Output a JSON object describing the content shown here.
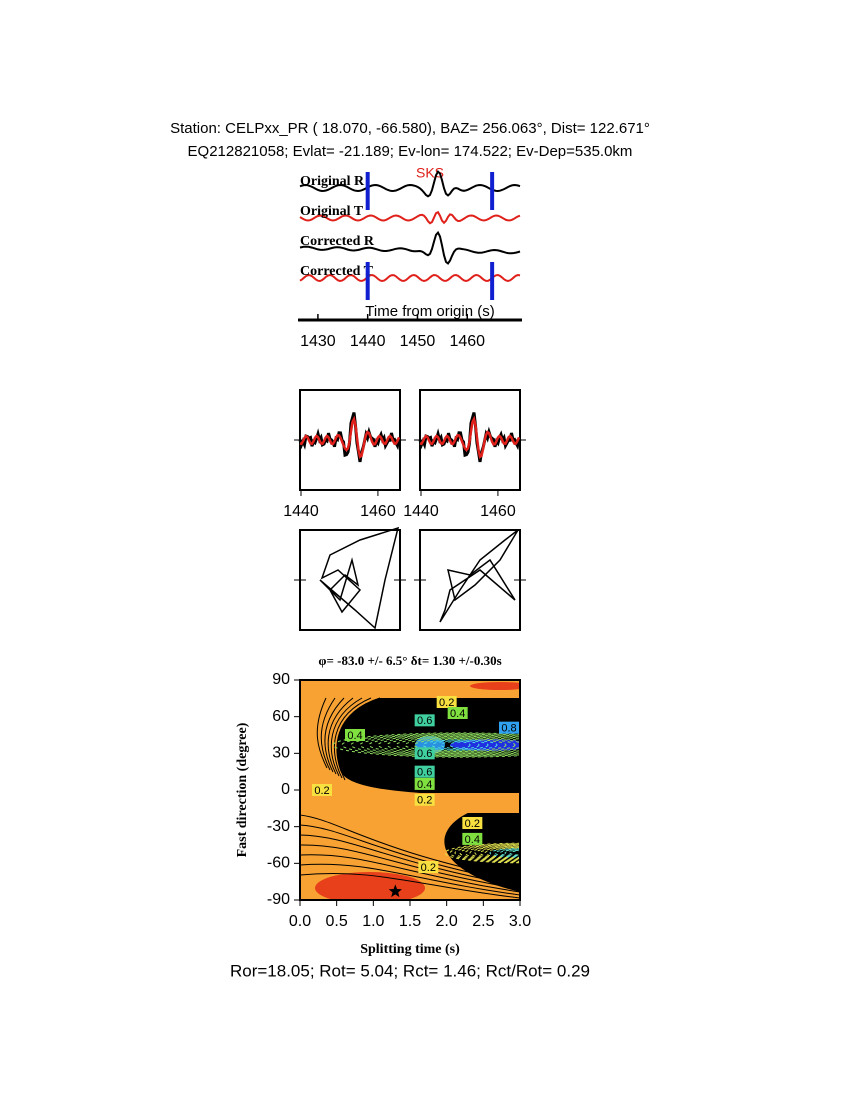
{
  "header": {
    "line1": "Station: CELPxx_PR (  18.070,  -66.580), BAZ=  256.063°, Dist=  122.671°",
    "line2": "EQ212821058; Evlat= -21.189; Ev-lon= 174.522; Ev-Dep=535.0km"
  },
  "traces": {
    "labels": [
      "Original R",
      "Original T",
      "Corrected R",
      "Corrected T"
    ],
    "colors": [
      "#000000",
      "#e0201a",
      "#000000",
      "#e0201a"
    ],
    "phase": "SKS",
    "xlabel": "Time from origin (s)",
    "xlim": [
      1426,
      1471
    ],
    "xticks": [
      1430,
      1440,
      1450,
      1460
    ],
    "window": [
      1440,
      1465
    ]
  },
  "waveforms": {
    "xlim": [
      1440,
      1466
    ],
    "xticks": [
      1440,
      1460
    ]
  },
  "grid_search": {
    "title": "φ= -83.0 +/- 6.5° δt= 1.30 +/-0.30s",
    "xlabel": "Splitting time (s)",
    "ylabel": "Fast direction (degree)",
    "xlim": [
      0,
      3
    ],
    "ylim": [
      -90,
      90
    ],
    "xticks": [
      {
        "value": 0,
        "label": "0.0"
      },
      {
        "value": 0.5,
        "label": "0.5"
      },
      {
        "value": 1,
        "label": "1.0"
      },
      {
        "value": 1.5,
        "label": "1.5"
      },
      {
        "value": 2,
        "label": "2.0"
      },
      {
        "value": 2.5,
        "label": "2.5"
      },
      {
        "value": 3,
        "label": "3.0"
      }
    ],
    "yticks": [
      -90,
      -60,
      -30,
      0,
      30,
      60,
      90
    ],
    "contour_levels": [
      0.2,
      0.4,
      0.6,
      0.8,
      0.4,
      0.6,
      0.6,
      0.4,
      0.2,
      0.2,
      0.2,
      0.4,
      0.2
    ],
    "best": {
      "dt": 1.3,
      "phi": -83
    }
  },
  "footer": "Ror=18.05; Rot= 5.04; Rct= 1.46; Rct/Rot= 0.29"
}
